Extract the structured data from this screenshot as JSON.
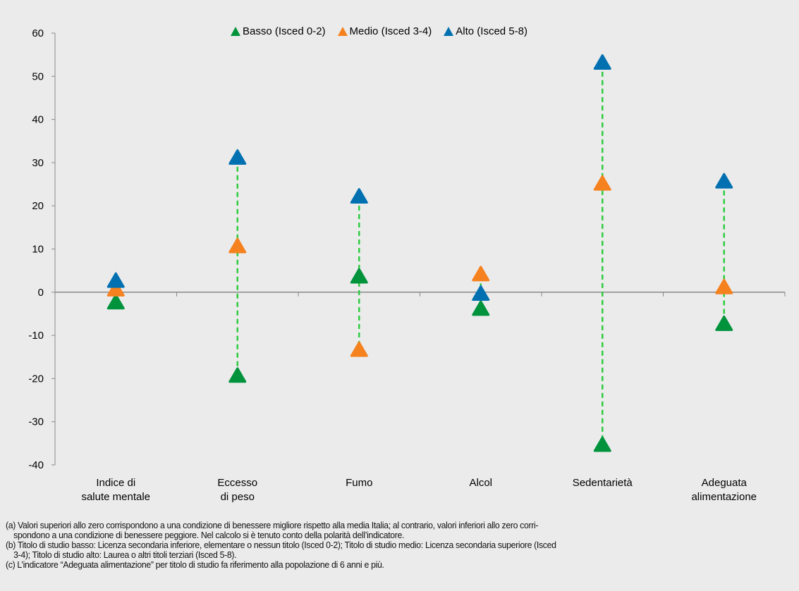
{
  "chart_data": {
    "type": "scatter",
    "categories": [
      "Indice di\nsalute mentale",
      "Eccesso\ndi peso",
      "Fumo",
      "Alcol",
      "Sedentarietà",
      "Adeguata\nalimentazione"
    ],
    "series": [
      {
        "name": "Basso (Isced 0-2)",
        "color": "#00933c",
        "values": [
          -2.5,
          -19.5,
          3.5,
          -4,
          -35.5,
          -7.5
        ]
      },
      {
        "name": "Medio (Isced 3-4)",
        "color": "#f5821f",
        "values": [
          0.5,
          10.5,
          -13.5,
          4,
          25,
          1
        ]
      },
      {
        "name": "Alto (Isced 5-8)",
        "color": "#0070b0",
        "values": [
          2.5,
          31,
          22,
          -0.5,
          53,
          25.5
        ]
      }
    ],
    "ylim": [
      -40,
      60
    ],
    "yticks": [
      60,
      50,
      40,
      30,
      20,
      10,
      0,
      -10,
      -20,
      -30,
      -40
    ],
    "range_line_color": "#2ecc40",
    "grid": false,
    "legend": "top-center"
  },
  "notes": [
    "(a) Valori superiori allo zero corrispondono a una condizione di benessere migliore rispetto alla media Italia; al contrario, valori inferiori allo zero corri-",
    "spondono a una condizione di benessere peggiore. Nel calcolo si è tenuto conto della polarità dell’indicatore.",
    "(b) Titolo di studio basso: Licenza secondaria inferiore, elementare o nessun titolo (Isced 0-2); Titolo di studio medio: Licenza secondaria superiore (Isced",
    "3-4); Titolo di studio alto: Laurea o altri titoli terziari (Isced 5-8).",
    "(c) L’indicatore “Adeguata alimentazione” per titolo di studio fa riferimento alla popolazione di 6 anni e più."
  ]
}
